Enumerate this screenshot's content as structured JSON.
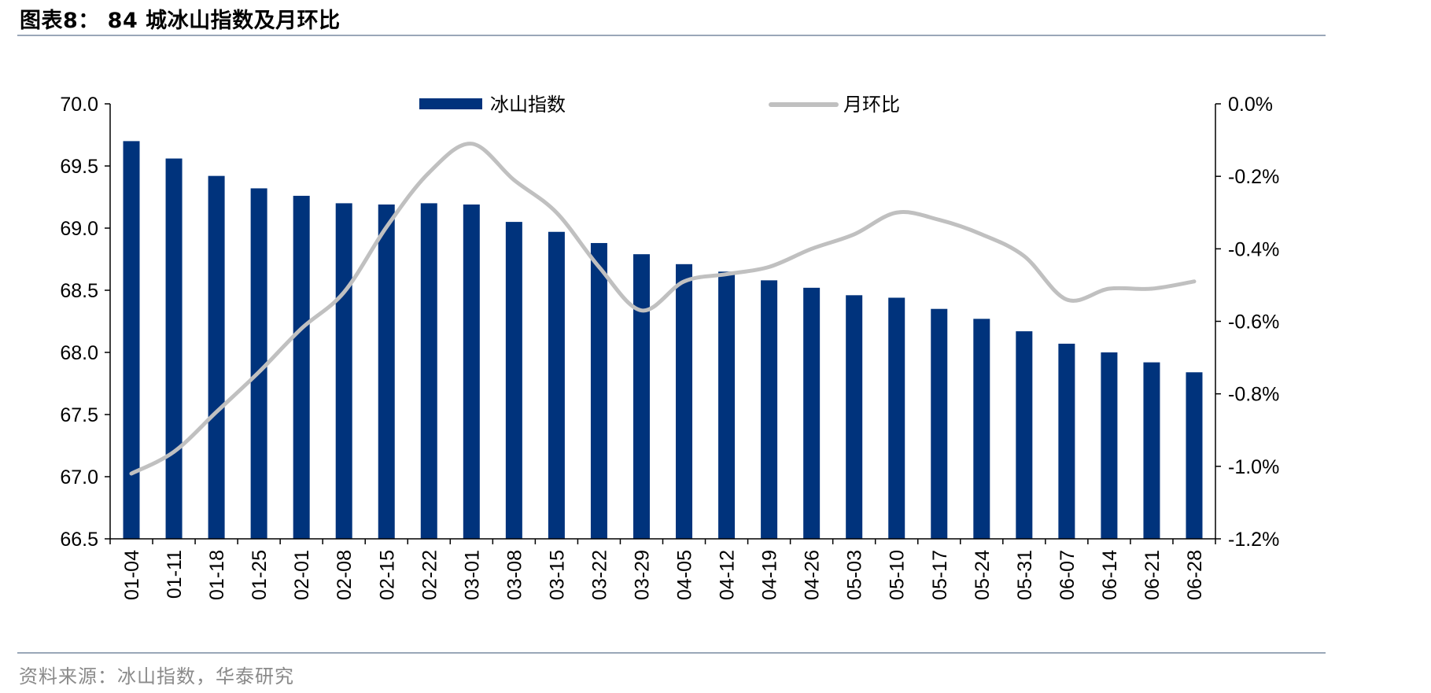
{
  "title": "图表8：  84 城冰山指数及月环比",
  "source": "资料来源：冰山指数，华泰研究",
  "chart_data": {
    "type": "bar",
    "categories": [
      "01-04",
      "01-11",
      "01-18",
      "01-25",
      "02-01",
      "02-08",
      "02-15",
      "02-22",
      "03-01",
      "03-08",
      "03-15",
      "03-22",
      "03-29",
      "04-05",
      "04-12",
      "04-19",
      "04-26",
      "05-03",
      "05-10",
      "05-17",
      "05-24",
      "05-31",
      "06-07",
      "06-14",
      "06-21",
      "06-28"
    ],
    "series": [
      {
        "name": "冰山指数",
        "type": "bar",
        "axis": "left",
        "color": "#00337c",
        "values": [
          69.7,
          69.56,
          69.42,
          69.32,
          69.26,
          69.2,
          69.19,
          69.2,
          69.19,
          69.05,
          68.97,
          68.88,
          68.79,
          68.71,
          68.65,
          68.58,
          68.52,
          68.46,
          68.44,
          68.35,
          68.27,
          68.17,
          68.07,
          68.0,
          67.92,
          67.84
        ]
      },
      {
        "name": "月环比",
        "type": "line",
        "axis": "right",
        "color": "#c0c0c0",
        "values": [
          -1.02,
          -0.96,
          -0.85,
          -0.74,
          -0.62,
          -0.52,
          -0.34,
          -0.19,
          -0.11,
          -0.21,
          -0.3,
          -0.45,
          -0.57,
          -0.49,
          -0.47,
          -0.45,
          -0.4,
          -0.36,
          -0.3,
          -0.32,
          -0.36,
          -0.42,
          -0.54,
          -0.51,
          -0.51,
          -0.49
        ]
      }
    ],
    "y_left": {
      "ylim": [
        66.5,
        70.0
      ],
      "ticks": [
        "66.5",
        "67.0",
        "67.5",
        "68.0",
        "68.5",
        "69.0",
        "69.5",
        "70.0"
      ]
    },
    "y_right": {
      "ylim": [
        -1.2,
        0.0
      ],
      "ticks": [
        "-1.2%",
        "-1.0%",
        "-0.8%",
        "-0.6%",
        "-0.4%",
        "-0.2%",
        "0.0%"
      ]
    },
    "legend": "top-center",
    "grid": false
  }
}
